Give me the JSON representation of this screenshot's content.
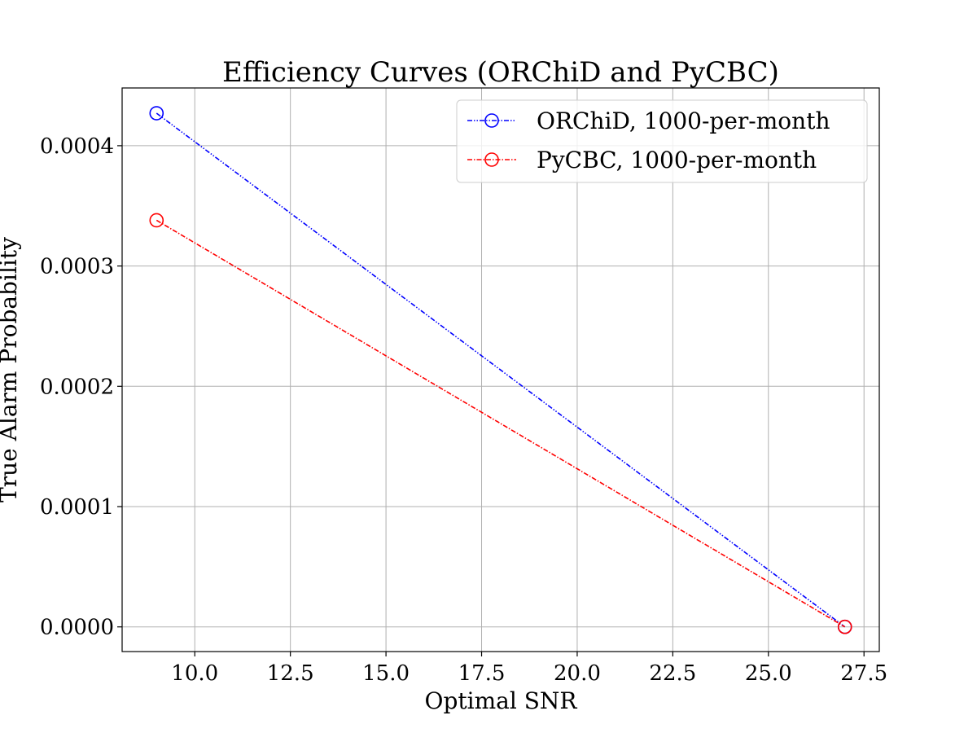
{
  "chart_data": {
    "type": "line",
    "title": "Efficiency Curves (ORChiD and PyCBC)",
    "xlabel": "Optimal SNR",
    "ylabel": "True Alarm Probability",
    "xlim": [
      8.1,
      27.9
    ],
    "ylim": [
      -2.05e-05,
      0.000448
    ],
    "xticks": [
      10.0,
      12.5,
      15.0,
      17.5,
      20.0,
      22.5,
      25.0,
      27.5
    ],
    "xtick_labels": [
      "10.0",
      "12.5",
      "15.0",
      "17.5",
      "20.0",
      "22.5",
      "25.0",
      "27.5"
    ],
    "yticks": [
      0.0,
      0.0001,
      0.0002,
      0.0003,
      0.0004
    ],
    "ytick_labels": [
      "0.0000",
      "0.0001",
      "0.0002",
      "0.0003",
      "0.0004"
    ],
    "grid": true,
    "legend_position": "upper-right",
    "series": [
      {
        "name": "ORChiD, 1000-per-month",
        "color": "#0000ff",
        "marker": "open-circle",
        "line_style": "dash-dot-dot",
        "x": [
          9.0,
          27.0
        ],
        "y": [
          0.000427,
          0.0
        ]
      },
      {
        "name": "PyCBC, 1000-per-month",
        "color": "#ff0000",
        "marker": "open-circle",
        "line_style": "dash-dot",
        "x": [
          9.0,
          27.0
        ],
        "y": [
          0.000338,
          0.0
        ]
      }
    ]
  }
}
